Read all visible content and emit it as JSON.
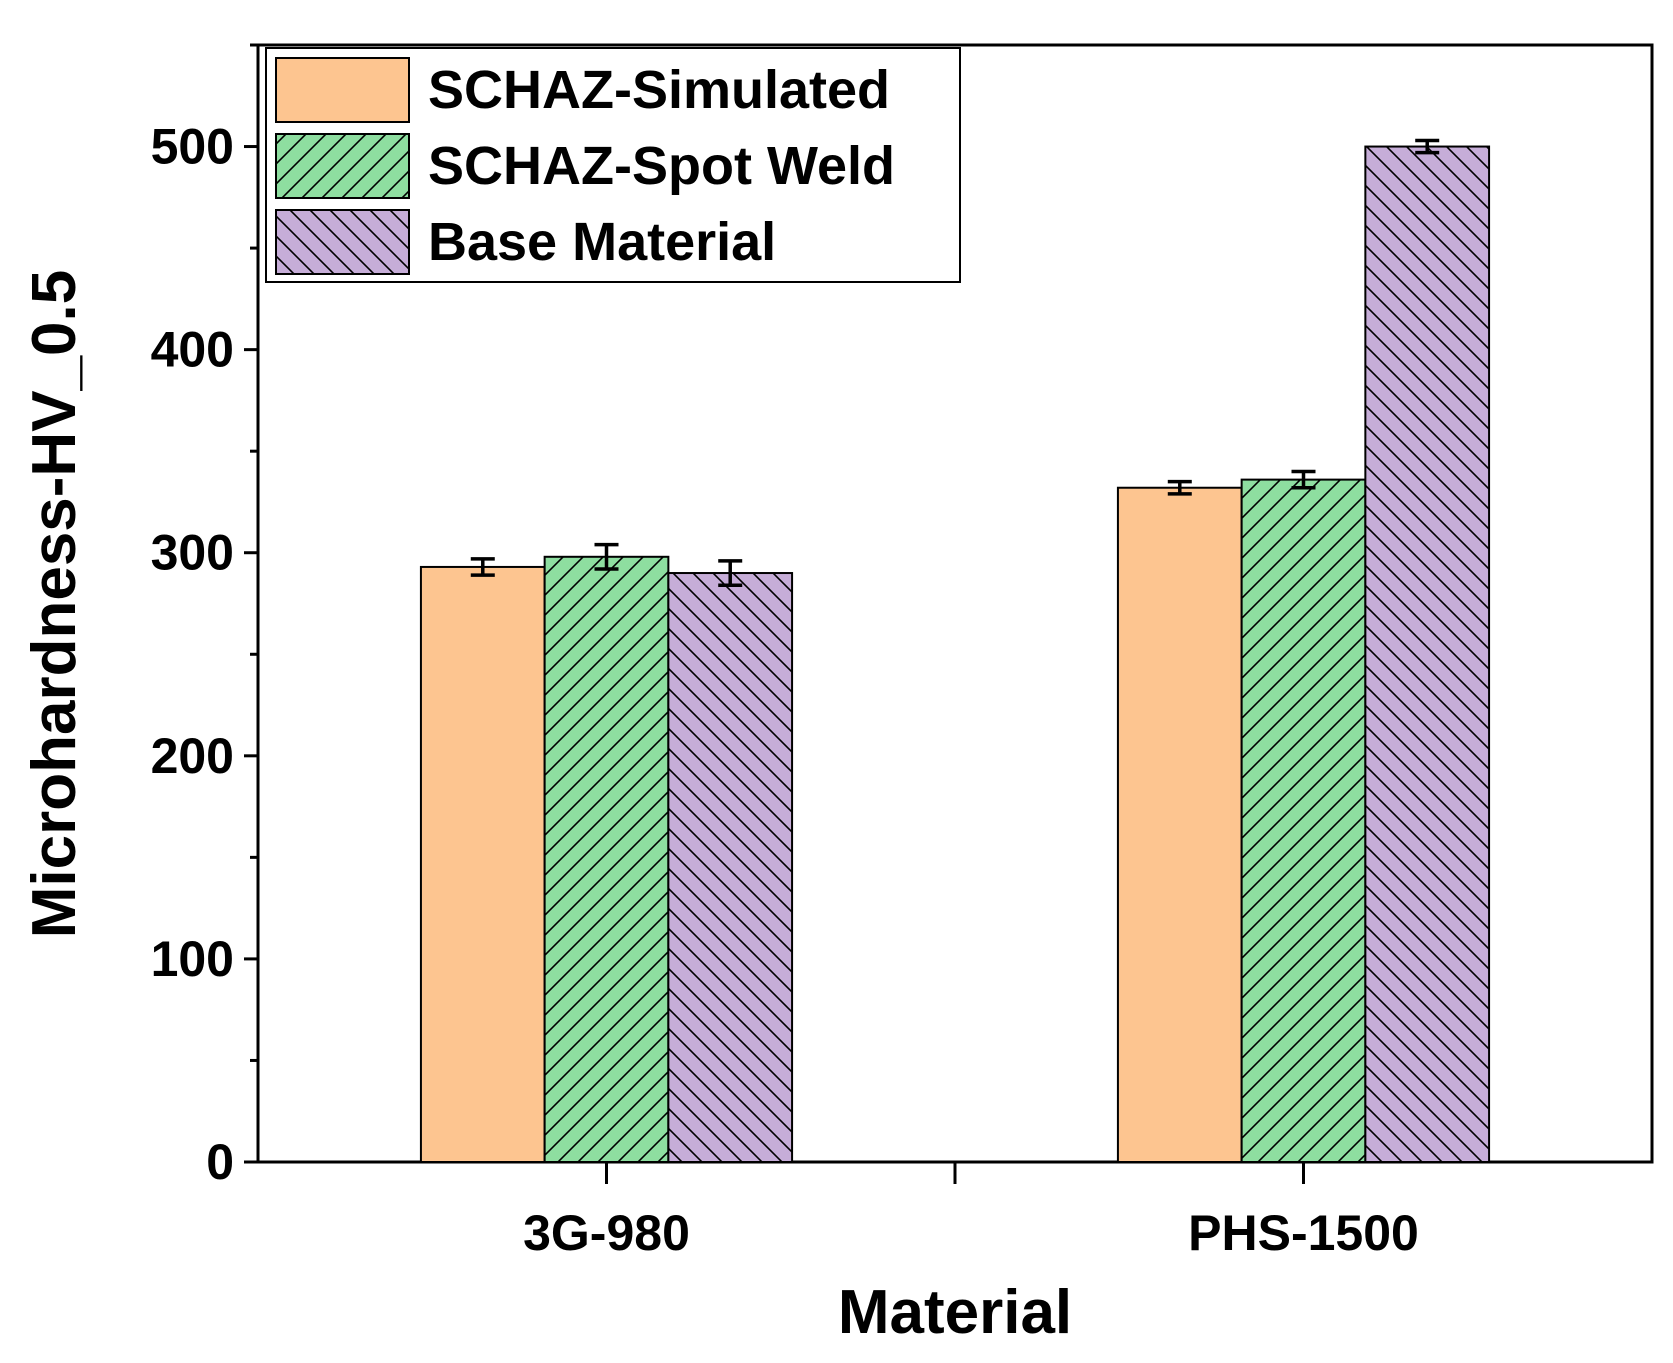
{
  "chart_data": {
    "type": "bar",
    "title": "",
    "xlabel": "Material",
    "ylabel": "Microhardness-HV_0.5",
    "categories": [
      "3G-980",
      "PHS-1500"
    ],
    "ylim": [
      0,
      550
    ],
    "yticks": [
      0,
      100,
      200,
      300,
      400,
      500
    ],
    "legend_position": "top-left",
    "grid": false,
    "series": [
      {
        "name": "SCHAZ-Simulated",
        "values": [
          293,
          332
        ],
        "errors": [
          4,
          3
        ],
        "color": "#FDC590",
        "hatch": "none"
      },
      {
        "name": "SCHAZ-Spot Weld",
        "values": [
          298,
          336
        ],
        "errors": [
          6,
          4
        ],
        "color": "#8EDEA0",
        "hatch": "forward"
      },
      {
        "name": "Base Material",
        "values": [
          290,
          500
        ],
        "errors": [
          6,
          3
        ],
        "color": "#C6ADD8",
        "hatch": "backward"
      }
    ]
  }
}
